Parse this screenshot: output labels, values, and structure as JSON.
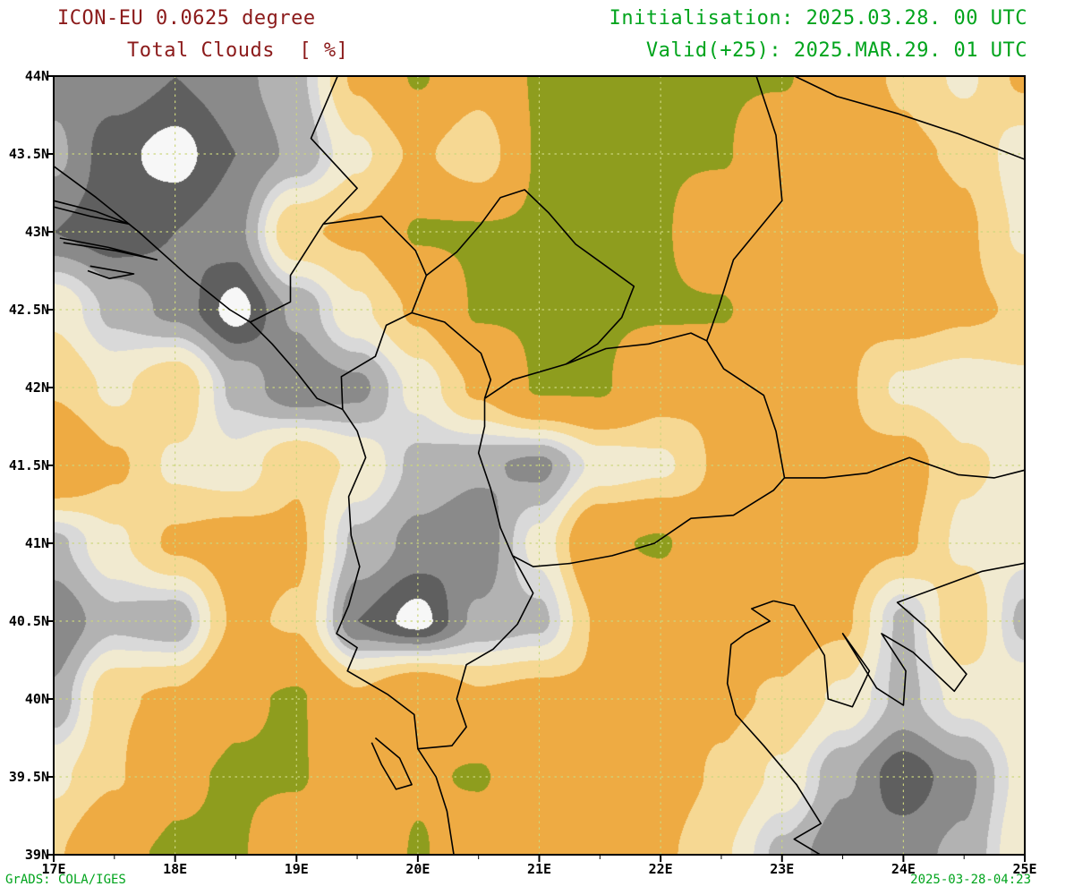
{
  "header": {
    "model_line": "ICON-EU 0.0625 degree",
    "variable_line": "Total Clouds  [ %]",
    "init_line": "Initialisation: 2025.03.28. 00 UTC",
    "valid_line": "Valid(+25): 2025.MAR.29. 01 UTC"
  },
  "footer": {
    "left": "GrADS: COLA/IGES",
    "right": "2025-03-28-04:23"
  },
  "colors": {
    "title_text": "#8b1a1a",
    "meta_text": "#00a41c",
    "footer_text": "#00a41c",
    "axis_text": "#000000",
    "frame": "#000000",
    "grid_dots": "#ccd67e",
    "border_lines": "#000000"
  },
  "axes": {
    "x_labels": [
      "17E",
      "18E",
      "19E",
      "20E",
      "21E",
      "22E",
      "23E",
      "24E",
      "25E"
    ],
    "x_values": [
      17,
      18,
      19,
      20,
      21,
      22,
      23,
      24,
      25
    ],
    "y_labels": [
      "44N",
      "43.5N",
      "43N",
      "42.5N",
      "42N",
      "41.5N",
      "41N",
      "40.5N",
      "40N",
      "39.5N",
      "39N"
    ],
    "y_values": [
      44,
      43.5,
      43,
      42.5,
      42,
      41.5,
      41,
      40.5,
      40,
      39.5,
      39
    ],
    "lon_range": [
      17,
      25
    ],
    "lat_range": [
      39,
      44
    ]
  },
  "chart_data": {
    "type": "heatmap",
    "title": "Total Clouds [ % ]",
    "model": "ICON-EU 0.0625 degree",
    "init": "2025.03.28. 00 UTC",
    "valid": "2025.MAR.29. 01 UTC",
    "forecast_hour": 25,
    "units": "%",
    "grid_on": true,
    "lons": [
      17,
      17.5,
      18,
      18.5,
      19,
      19.5,
      20,
      20.5,
      21,
      21.5,
      22,
      22.5,
      23,
      23.5,
      24,
      24.5,
      25
    ],
    "lats": [
      44,
      43.5,
      43,
      42.5,
      42,
      41.5,
      41,
      40.5,
      40,
      39.5,
      39
    ],
    "values_percent": [
      [
        85,
        85,
        90,
        85,
        75,
        35,
        10,
        30,
        10,
        10,
        10,
        10,
        10,
        30,
        40,
        55,
        35
      ],
      [
        80,
        95,
        100,
        90,
        80,
        55,
        35,
        50,
        10,
        10,
        10,
        10,
        30,
        15,
        35,
        40,
        60
      ],
      [
        90,
        95,
        90,
        85,
        40,
        35,
        10,
        10,
        10,
        10,
        10,
        30,
        35,
        30,
        15,
        35,
        55
      ],
      [
        55,
        75,
        85,
        100,
        80,
        55,
        35,
        10,
        10,
        10,
        10,
        10,
        30,
        35,
        30,
        35,
        40
      ],
      [
        40,
        55,
        40,
        75,
        90,
        85,
        60,
        35,
        10,
        10,
        30,
        35,
        30,
        35,
        55,
        60,
        55
      ],
      [
        15,
        35,
        55,
        60,
        40,
        55,
        75,
        80,
        85,
        60,
        55,
        35,
        30,
        35,
        30,
        50,
        55
      ],
      [
        75,
        55,
        35,
        30,
        35,
        75,
        85,
        90,
        60,
        15,
        10,
        30,
        35,
        30,
        35,
        55,
        60
      ],
      [
        90,
        75,
        80,
        35,
        40,
        90,
        100,
        80,
        75,
        35,
        30,
        35,
        30,
        35,
        75,
        40,
        75
      ],
      [
        80,
        40,
        35,
        15,
        10,
        35,
        15,
        35,
        30,
        35,
        30,
        35,
        40,
        55,
        75,
        60,
        55
      ],
      [
        55,
        40,
        15,
        10,
        10,
        30,
        15,
        10,
        30,
        35,
        30,
        40,
        55,
        80,
        95,
        85,
        60
      ],
      [
        40,
        15,
        10,
        10,
        30,
        35,
        10,
        30,
        30,
        35,
        35,
        50,
        75,
        90,
        85,
        80,
        55
      ]
    ],
    "levels": [
      12,
      38,
      52,
      64,
      72,
      82,
      90,
      97
    ],
    "palette": [
      "#8e9d1e",
      "#eeab43",
      "#f6d893",
      "#f1ead0",
      "#d9d9d9",
      "#b2b2b2",
      "#8a8a8a",
      "#5f5f5f",
      "#f7f7f7"
    ]
  },
  "map": {
    "borders": [
      [
        [
          16.95,
          43.45
        ],
        [
          17.35,
          43.22
        ],
        [
          17.7,
          43.0
        ],
        [
          18.1,
          42.72
        ],
        [
          18.45,
          42.5
        ],
        [
          18.62,
          42.42
        ],
        [
          18.8,
          42.28
        ],
        [
          19.0,
          42.1
        ],
        [
          19.17,
          41.93
        ],
        [
          19.38,
          41.86
        ],
        [
          19.5,
          41.72
        ],
        [
          19.57,
          41.55
        ],
        [
          19.43,
          41.3
        ],
        [
          19.45,
          41.05
        ],
        [
          19.52,
          40.85
        ],
        [
          19.43,
          40.6
        ],
        [
          19.33,
          40.42
        ],
        [
          19.5,
          40.33
        ],
        [
          19.42,
          40.18
        ],
        [
          19.75,
          40.03
        ],
        [
          19.97,
          39.9
        ],
        [
          20.0,
          39.68
        ],
        [
          20.15,
          39.5
        ],
        [
          20.24,
          39.28
        ],
        [
          20.3,
          38.98
        ]
      ],
      [
        [
          16.95,
          43.21
        ],
        [
          17.35,
          43.13
        ],
        [
          17.62,
          43.05
        ],
        [
          17.3,
          43.1
        ],
        [
          16.95,
          43.17
        ]
      ],
      [
        [
          17.05,
          42.96
        ],
        [
          17.45,
          42.9
        ],
        [
          17.85,
          42.82
        ],
        [
          17.5,
          42.88
        ],
        [
          17.08,
          42.93
        ]
      ],
      [
        [
          17.3,
          42.78
        ],
        [
          17.66,
          42.73
        ],
        [
          17.46,
          42.7
        ],
        [
          17.28,
          42.75
        ]
      ],
      [
        [
          19.35,
          44.02
        ],
        [
          19.12,
          43.6
        ],
        [
          19.5,
          43.28
        ],
        [
          19.22,
          43.05
        ],
        [
          18.95,
          42.72
        ],
        [
          18.95,
          42.55
        ],
        [
          18.62,
          42.42
        ]
      ],
      [
        [
          19.22,
          43.05
        ],
        [
          19.7,
          43.1
        ],
        [
          19.98,
          42.88
        ],
        [
          20.07,
          42.72
        ],
        [
          20.0,
          42.58
        ],
        [
          19.95,
          42.48
        ]
      ],
      [
        [
          19.38,
          41.86
        ],
        [
          19.37,
          42.07
        ],
        [
          19.65,
          42.2
        ],
        [
          19.74,
          42.4
        ],
        [
          19.95,
          42.48
        ],
        [
          20.22,
          42.42
        ],
        [
          20.52,
          42.22
        ],
        [
          20.6,
          42.05
        ],
        [
          20.55,
          41.93
        ]
      ],
      [
        [
          20.07,
          42.72
        ],
        [
          20.32,
          42.87
        ],
        [
          20.52,
          43.05
        ],
        [
          20.68,
          43.22
        ],
        [
          20.88,
          43.27
        ],
        [
          21.08,
          43.12
        ],
        [
          21.3,
          42.92
        ],
        [
          21.55,
          42.78
        ],
        [
          21.78,
          42.65
        ],
        [
          21.68,
          42.45
        ],
        [
          21.48,
          42.28
        ],
        [
          21.22,
          42.15
        ]
      ],
      [
        [
          20.55,
          41.93
        ],
        [
          20.78,
          42.05
        ],
        [
          21.0,
          42.1
        ],
        [
          21.22,
          42.15
        ]
      ],
      [
        [
          21.22,
          42.15
        ],
        [
          21.55,
          42.25
        ],
        [
          21.9,
          42.28
        ],
        [
          22.25,
          42.35
        ],
        [
          22.38,
          42.3
        ]
      ],
      [
        [
          22.38,
          42.3
        ],
        [
          22.52,
          42.12
        ],
        [
          22.85,
          41.95
        ],
        [
          22.95,
          41.72
        ],
        [
          23.02,
          41.42
        ],
        [
          22.93,
          41.34
        ],
        [
          22.6,
          41.18
        ],
        [
          22.25,
          41.16
        ],
        [
          21.95,
          41.0
        ],
        [
          21.6,
          40.92
        ],
        [
          21.25,
          40.87
        ],
        [
          20.95,
          40.85
        ],
        [
          20.78,
          40.92
        ],
        [
          20.68,
          41.1
        ],
        [
          20.6,
          41.35
        ],
        [
          20.5,
          41.58
        ],
        [
          20.55,
          41.75
        ],
        [
          20.55,
          41.93
        ]
      ],
      [
        [
          20.78,
          40.92
        ],
        [
          20.95,
          40.68
        ],
        [
          20.82,
          40.48
        ],
        [
          20.62,
          40.32
        ],
        [
          20.4,
          40.22
        ],
        [
          20.32,
          40.0
        ],
        [
          20.4,
          39.82
        ],
        [
          20.28,
          39.7
        ],
        [
          20.0,
          39.68
        ]
      ],
      [
        [
          22.78,
          44.02
        ],
        [
          22.95,
          43.62
        ],
        [
          23.0,
          43.2
        ],
        [
          22.6,
          42.82
        ],
        [
          22.48,
          42.52
        ],
        [
          22.38,
          42.3
        ]
      ],
      [
        [
          23.05,
          44.02
        ],
        [
          23.45,
          43.87
        ],
        [
          23.95,
          43.76
        ],
        [
          24.45,
          43.63
        ],
        [
          25.05,
          43.45
        ]
      ],
      [
        [
          23.02,
          41.42
        ],
        [
          23.35,
          41.42
        ],
        [
          23.7,
          41.45
        ],
        [
          24.05,
          41.55
        ],
        [
          24.45,
          41.44
        ],
        [
          24.75,
          41.42
        ],
        [
          25.05,
          41.48
        ]
      ],
      [
        [
          22.93,
          40.63
        ],
        [
          22.75,
          40.58
        ],
        [
          22.9,
          40.5
        ],
        [
          22.7,
          40.42
        ],
        [
          22.58,
          40.35
        ],
        [
          22.55,
          40.1
        ],
        [
          22.62,
          39.9
        ],
        [
          22.85,
          39.7
        ],
        [
          23.12,
          39.45
        ],
        [
          23.32,
          39.2
        ],
        [
          23.1,
          39.1
        ],
        [
          23.38,
          38.97
        ]
      ],
      [
        [
          22.93,
          40.63
        ],
        [
          23.1,
          40.6
        ],
        [
          23.35,
          40.28
        ],
        [
          23.38,
          40.0
        ],
        [
          23.58,
          39.95
        ],
        [
          23.72,
          40.18
        ],
        [
          23.5,
          40.42
        ],
        [
          23.78,
          40.07
        ],
        [
          24.0,
          39.96
        ],
        [
          24.02,
          40.18
        ],
        [
          23.82,
          40.42
        ],
        [
          24.08,
          40.3
        ],
        [
          24.42,
          40.05
        ],
        [
          24.52,
          40.16
        ],
        [
          24.2,
          40.45
        ],
        [
          23.95,
          40.62
        ],
        [
          24.3,
          40.72
        ],
        [
          24.65,
          40.82
        ],
        [
          25.05,
          40.88
        ]
      ],
      [
        [
          19.65,
          39.75
        ],
        [
          19.85,
          39.62
        ],
        [
          19.95,
          39.45
        ],
        [
          19.82,
          39.42
        ],
        [
          19.7,
          39.58
        ],
        [
          19.62,
          39.72
        ]
      ]
    ]
  }
}
